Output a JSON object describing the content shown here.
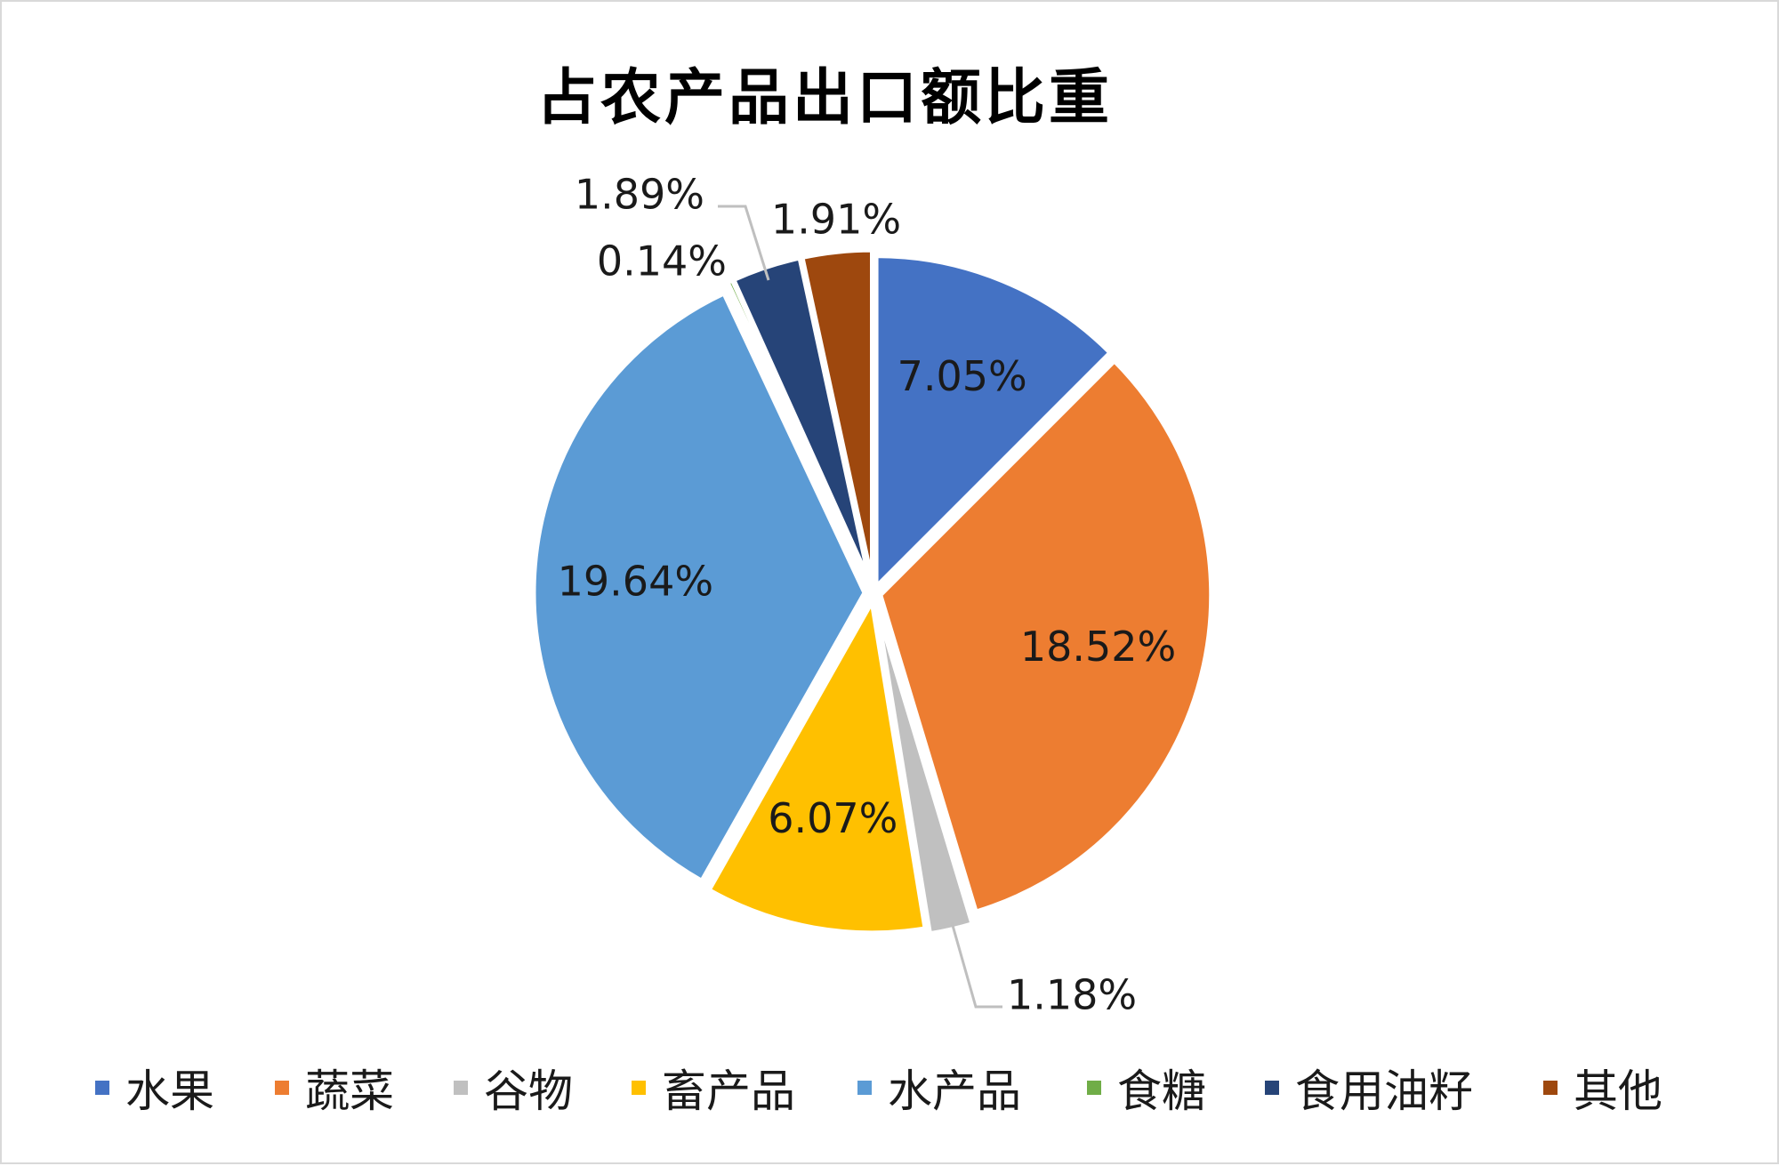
{
  "chart_data": {
    "type": "pie",
    "title": "占农产品出口额比重",
    "categories": [
      "水果",
      "蔬菜",
      "谷物",
      "畜产品",
      "水产品",
      "食糖",
      "食用油籽",
      "其他"
    ],
    "values": [
      7.05,
      18.52,
      1.18,
      6.07,
      19.64,
      0.14,
      1.89,
      1.91
    ],
    "labels": [
      "7.05%",
      "18.52%",
      "1.18%",
      "6.07%",
      "19.64%",
      "0.14%",
      "1.89%",
      "1.91%"
    ],
    "colors": [
      "#4472C4",
      "#ED7D31",
      "#C0C0C0",
      "#FFC000",
      "#5B9BD5",
      "#70AD47",
      "#264478",
      "#9E480E"
    ],
    "start_angle": "12 o'clock",
    "direction": "clockwise",
    "legend": "bottom"
  }
}
